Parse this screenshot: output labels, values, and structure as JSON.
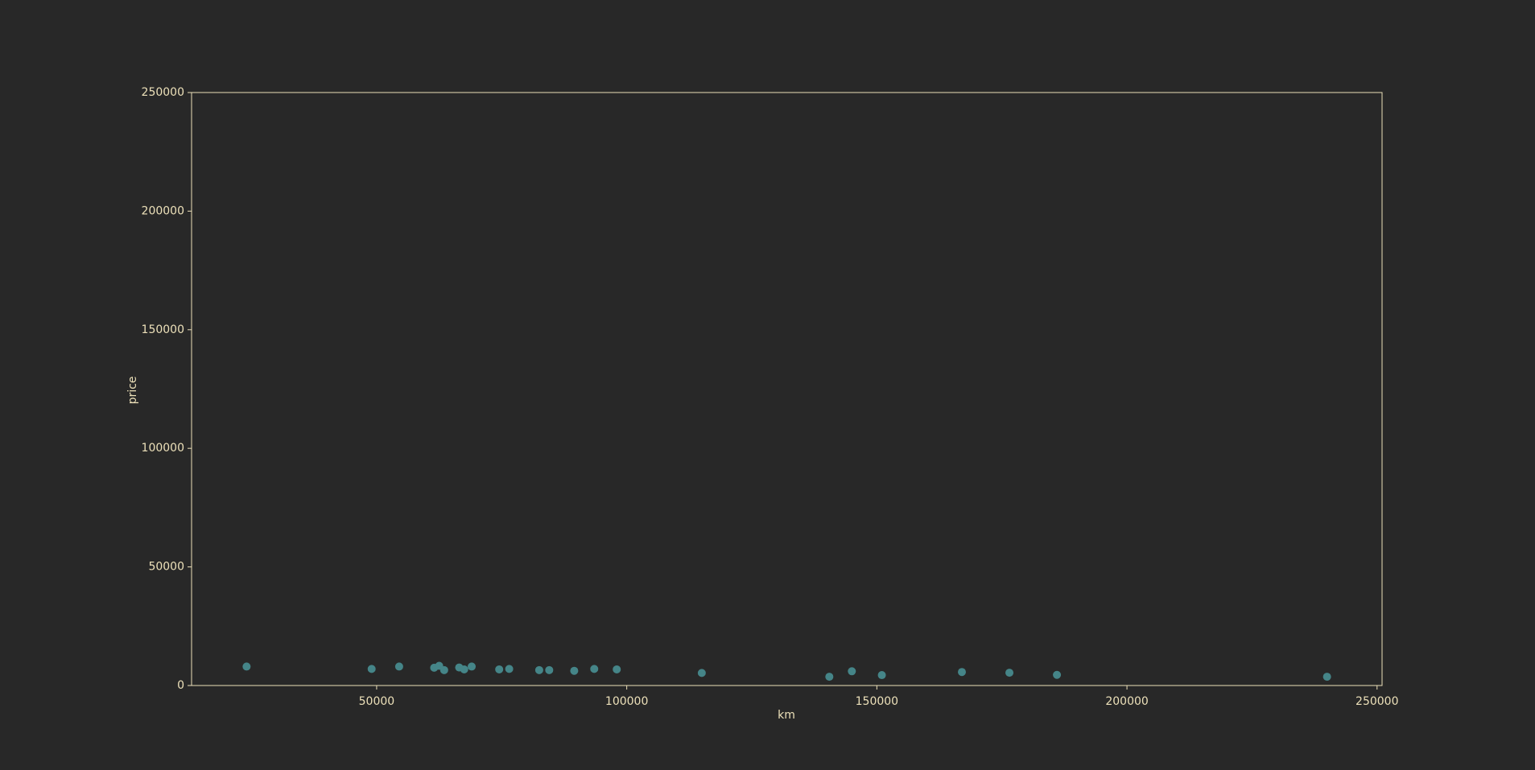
{
  "chart_data": {
    "type": "scatter",
    "title": "",
    "xlabel": "km",
    "ylabel": "price",
    "xlim": [
      13000,
      251000
    ],
    "ylim": [
      0,
      250000
    ],
    "xticks": [
      50000,
      100000,
      150000,
      200000,
      250000
    ],
    "yticks": [
      0,
      50000,
      100000,
      150000,
      200000,
      250000
    ],
    "grid": false,
    "legend": "none",
    "colors": {
      "background": "#282828",
      "axes": "#ece0b9",
      "text": "#ece0b9",
      "points": "#458588"
    },
    "points": [
      {
        "x": 24000,
        "y": 8000
      },
      {
        "x": 49000,
        "y": 7000
      },
      {
        "x": 54500,
        "y": 8000
      },
      {
        "x": 61500,
        "y": 7500
      },
      {
        "x": 62500,
        "y": 8300
      },
      {
        "x": 63500,
        "y": 6500
      },
      {
        "x": 66500,
        "y": 7600
      },
      {
        "x": 67500,
        "y": 6800
      },
      {
        "x": 69000,
        "y": 8000
      },
      {
        "x": 74500,
        "y": 6800
      },
      {
        "x": 76500,
        "y": 7000
      },
      {
        "x": 82500,
        "y": 6500
      },
      {
        "x": 84500,
        "y": 6500
      },
      {
        "x": 89500,
        "y": 6200
      },
      {
        "x": 93500,
        "y": 7000
      },
      {
        "x": 98000,
        "y": 6800
      },
      {
        "x": 115000,
        "y": 5300
      },
      {
        "x": 140500,
        "y": 3700
      },
      {
        "x": 145000,
        "y": 6000
      },
      {
        "x": 151000,
        "y": 4400
      },
      {
        "x": 167000,
        "y": 5700
      },
      {
        "x": 176500,
        "y": 5400
      },
      {
        "x": 186000,
        "y": 4500
      },
      {
        "x": 240000,
        "y": 3700
      }
    ]
  }
}
